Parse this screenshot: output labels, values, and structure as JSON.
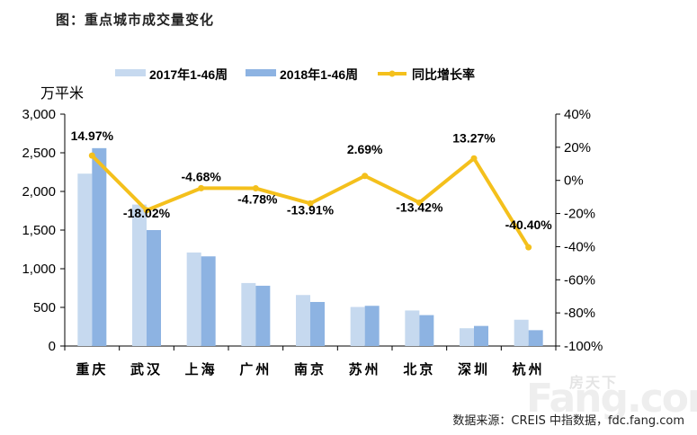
{
  "title": "图：重点城市成交量变化",
  "source": "数据来源：CREIS 中指数据，fdc.fang.com",
  "watermark": "房天下 Fang.com",
  "chart_data": {
    "type": "bar+line",
    "title": "图：重点城市成交量变化",
    "ylabel": "万平米",
    "categories": [
      "重庆",
      "武汉",
      "上海",
      "广州",
      "南京",
      "苏州",
      "北京",
      "深圳",
      "杭州"
    ],
    "series": [
      {
        "name": "2017年1-46周",
        "type": "bar",
        "axis": "left",
        "color": "#c6d9ef",
        "values": [
          2230,
          1830,
          1210,
          815,
          660,
          505,
          460,
          230,
          340
        ]
      },
      {
        "name": "2018年1-46周",
        "type": "bar",
        "axis": "left",
        "color": "#8db3e2",
        "values": [
          2560,
          1500,
          1160,
          780,
          570,
          520,
          400,
          260,
          205
        ]
      },
      {
        "name": "同比增长率",
        "type": "line",
        "axis": "right",
        "color": "#f4c01c",
        "values": [
          14.97,
          -18.02,
          -4.68,
          -4.78,
          -13.91,
          2.69,
          -13.42,
          13.27,
          -40.4
        ],
        "labels": [
          "14.97%",
          "-18.02%",
          "-4.68%",
          "-4.78%",
          "-13.91%",
          "2.69%",
          "-13.42%",
          "13.27%",
          "-40.40%"
        ]
      }
    ],
    "ylim": [
      0,
      3000
    ],
    "yticks": [
      "0",
      "500",
      "1,000",
      "1,500",
      "2,000",
      "2,500",
      "3,000"
    ],
    "y2lim": [
      -100,
      40
    ],
    "y2ticks": [
      "-100%",
      "-80%",
      "-60%",
      "-40%",
      "-20%",
      "0%",
      "20%",
      "40%"
    ],
    "legend": "top",
    "grid": false
  }
}
